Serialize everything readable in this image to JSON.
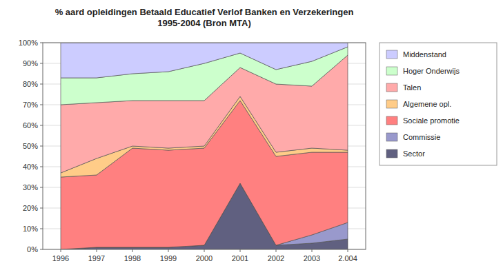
{
  "chart_data": {
    "type": "area",
    "stacked": true,
    "title": "% aard opleidingen Betaald Educatief Verlof Banken en Verzekeringen\n1995-2004 (Bron MTA)",
    "x": [
      1996,
      1997,
      1998,
      1999,
      2000,
      2001,
      2002,
      2003,
      2004
    ],
    "series": [
      {
        "name": "Sector",
        "color": "#606080",
        "values": [
          0,
          1,
          1,
          1,
          2,
          32,
          2,
          3,
          5
        ]
      },
      {
        "name": "Commissie",
        "color": "#9999cc",
        "values": [
          0,
          0,
          0,
          0,
          0,
          0,
          0,
          4,
          8
        ]
      },
      {
        "name": "Sociale promotie",
        "color": "#ff8080",
        "values": [
          35,
          35,
          48,
          47,
          47,
          40,
          43,
          40,
          34
        ]
      },
      {
        "name": "Algemene opl.",
        "color": "#ffcc88",
        "values": [
          2,
          8,
          1,
          1,
          1,
          2,
          2,
          2,
          1
        ]
      },
      {
        "name": "Talen",
        "color": "#ffaaaa",
        "values": [
          33,
          27,
          22,
          23,
          22,
          14,
          33,
          30,
          46
        ]
      },
      {
        "name": "Hoger Onderwijs",
        "color": "#ccffcc",
        "values": [
          13,
          12,
          13,
          14,
          18,
          7,
          7,
          12,
          4
        ]
      },
      {
        "name": "Middenstand",
        "color": "#ccccff",
        "values": [
          17,
          17,
          15,
          14,
          10,
          5,
          13,
          9,
          2
        ]
      }
    ],
    "xlim": [
      1995.5,
      2004.5
    ],
    "xticks": [
      1996,
      1997,
      1998,
      1999,
      2000,
      2001,
      2002,
      2003,
      {
        "value": 2004,
        "label": "2.004"
      }
    ],
    "ylim": [
      0,
      100
    ],
    "yticks": [
      {
        "value": 0,
        "label": "0%"
      },
      {
        "value": 10,
        "label": "10%"
      },
      {
        "value": 20,
        "label": "20%"
      },
      {
        "value": 30,
        "label": "30%"
      },
      {
        "value": 40,
        "label": "40%"
      },
      {
        "value": 50,
        "label": "50%"
      },
      {
        "value": 60,
        "label": "60%"
      },
      {
        "value": 70,
        "label": "70%"
      },
      {
        "value": 80,
        "label": "80%"
      },
      {
        "value": 90,
        "label": "90%"
      },
      {
        "value": 100,
        "label": "100%"
      }
    ],
    "grid": true,
    "legend": "right"
  }
}
